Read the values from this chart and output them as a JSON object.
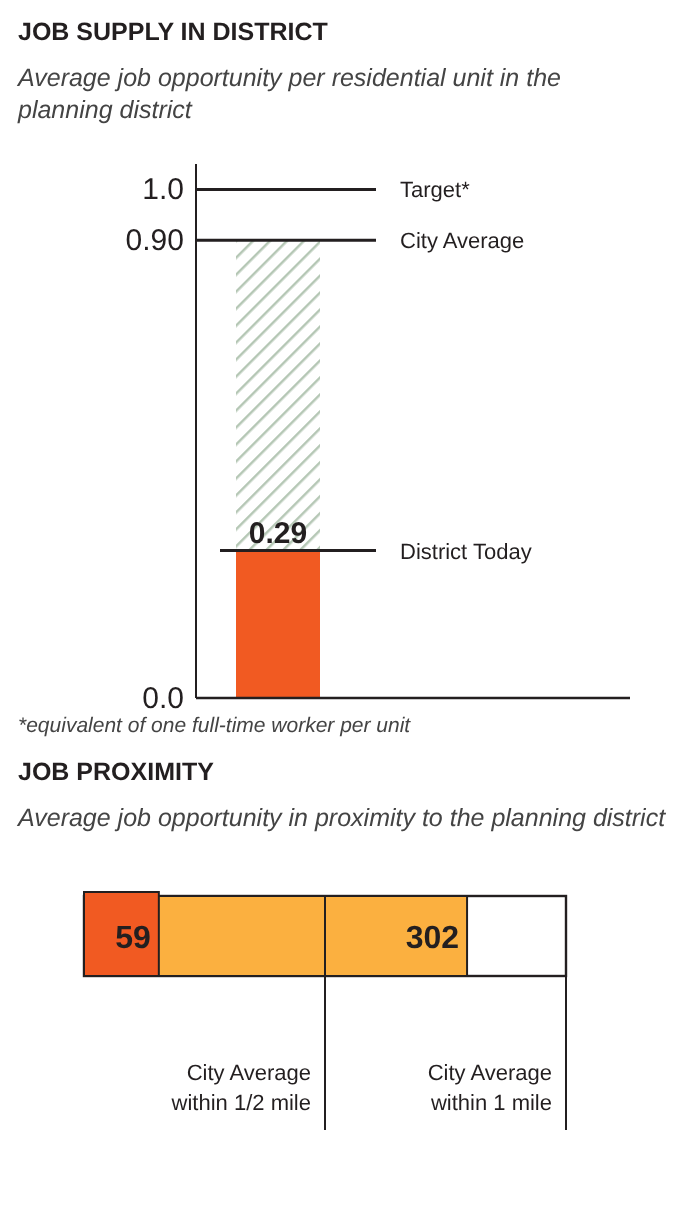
{
  "chart_data": [
    {
      "type": "bar",
      "title": "JOB SUPPLY IN DISTRICT",
      "subtitle": "Average job opportunity per residential unit in the planning district",
      "categories": [
        null
      ],
      "stacked": true,
      "series": [
        {
          "color": "#f15a22",
          "values": [
            0.29
          ],
          "value_labels": [
            "0.29"
          ]
        },
        {
          "color": "#b5c7b5",
          "values": [
            0.61
          ]
        }
      ],
      "ylim": [
        0,
        1.05
      ],
      "yticks": [
        {
          "value": 0,
          "label": "0.0"
        },
        {
          "value": 0.9,
          "label": "0.90"
        },
        {
          "value": 1.0,
          "label": "1.0"
        }
      ],
      "ref_lines": [
        {
          "axis": "y",
          "value": 1.0,
          "label": "Target*"
        },
        {
          "axis": "y",
          "value": 0.9,
          "label": "City Average"
        },
        {
          "axis": "y",
          "value": 0.29,
          "label": "District Today"
        }
      ],
      "annotations": [
        "*equivalent of one full-time worker per unit"
      ]
    },
    {
      "type": "bar",
      "title": "JOB PROXIMITY",
      "subtitle": "Average job opportunity in proximity to the planning district",
      "categories": [
        null
      ],
      "orientation": "horizontal",
      "series": [
        {
          "color": "#fbb040",
          "values": [
            302
          ]
        },
        {
          "color": "#f15a22",
          "values": [
            59
          ]
        }
      ],
      "xlim": [
        0,
        380
      ],
      "data_labels": true,
      "tick_labels": false,
      "ref_lines": [
        {
          "axis": "x",
          "value": 190,
          "label": "City Average within 1/2 mile"
        },
        {
          "axis": "x",
          "value": 380,
          "label": "City Average within 1 mile"
        }
      ]
    }
  ]
}
